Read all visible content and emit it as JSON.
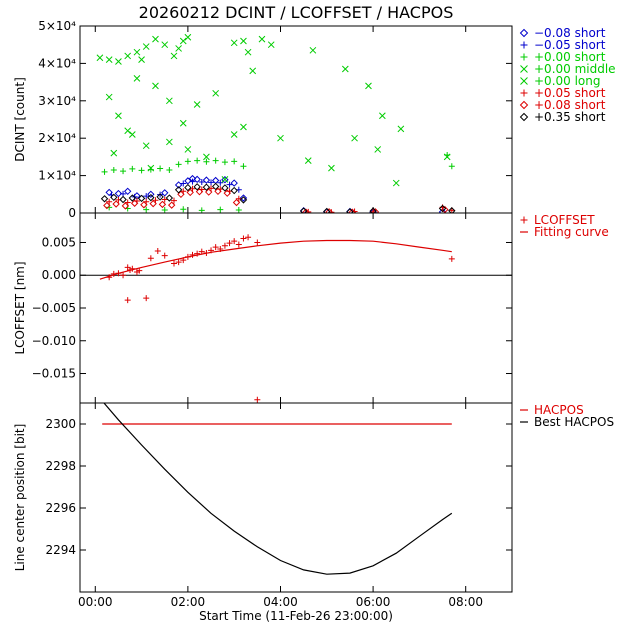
{
  "title": "20260212 DCINT / LCOFFSET / HACPOS",
  "chart_data": [
    {
      "type": "scatter",
      "ylabel": "DCINT [count]",
      "xlim": [
        -0.33,
        9.0
      ],
      "ylim": [
        0,
        50000
      ],
      "yticks": [
        {
          "v": 0,
          "t": "0"
        },
        {
          "v": 10000,
          "t": "1×10⁴"
        },
        {
          "v": 20000,
          "t": "2×10⁴"
        },
        {
          "v": 30000,
          "t": "3×10⁴"
        },
        {
          "v": 40000,
          "t": "4×10⁴"
        },
        {
          "v": 50000,
          "t": "5×10⁴"
        }
      ],
      "legend_position": "right",
      "series": [
        {
          "name": "−0.08 short",
          "marker": "diamond",
          "color": "#0000cc",
          "x": [
            0.3,
            0.5,
            0.7,
            0.9,
            1.2,
            1.5,
            1.8,
            2.0,
            2.1,
            2.2,
            2.4,
            2.6,
            2.8,
            3.0,
            3.2,
            4.5,
            5.0,
            5.5,
            6.0,
            7.5
          ],
          "y": [
            5500,
            5200,
            5800,
            4600,
            5000,
            5400,
            7500,
            8600,
            9200,
            9000,
            8800,
            8700,
            8900,
            8000,
            4000,
            600,
            300,
            400,
            200,
            300
          ]
        },
        {
          "name": "−0.05 short",
          "marker": "plus",
          "color": "#0000cc",
          "x": [
            0.35,
            0.6,
            0.85,
            1.1,
            1.4,
            1.9,
            2.1,
            2.3,
            2.5,
            2.7,
            2.9,
            3.1
          ],
          "y": [
            4800,
            5100,
            4300,
            4500,
            4900,
            7900,
            8400,
            8300,
            8200,
            8100,
            7600,
            6200
          ]
        },
        {
          "name": "+0.00 short",
          "marker": "plus",
          "color": "#00cc00",
          "x": [
            0.2,
            0.4,
            0.6,
            0.8,
            1.0,
            1.2,
            1.4,
            1.6,
            1.8,
            2.0,
            2.2,
            2.4,
            2.6,
            2.8,
            3.0,
            3.2,
            0.3,
            0.7,
            1.1,
            1.5,
            1.9,
            2.3,
            2.7,
            3.1,
            7.6,
            7.7
          ],
          "y": [
            11000,
            11500,
            11200,
            11800,
            11400,
            11600,
            11900,
            11500,
            13000,
            13800,
            14000,
            13700,
            14000,
            13600,
            13800,
            12500,
            1500,
            1200,
            900,
            800,
            1000,
            700,
            900,
            800,
            15500,
            12500
          ]
        },
        {
          "name": "+0.00 middle",
          "marker": "cross",
          "color": "#00cc00",
          "x": [
            0.3,
            0.5,
            0.7,
            0.9,
            1.1,
            1.3,
            1.6,
            1.9,
            2.2,
            2.6,
            3.0,
            3.4,
            0.4,
            0.8,
            1.2,
            1.6,
            2.0,
            2.4,
            2.8,
            3.2,
            4.0,
            4.6,
            5.1,
            5.6,
            6.1,
            6.5,
            7.6
          ],
          "y": [
            31000,
            26000,
            22000,
            36000,
            18000,
            34000,
            30000,
            24000,
            29000,
            32000,
            21000,
            38000,
            16000,
            21000,
            12000,
            19000,
            17000,
            15000,
            9000,
            23000,
            20000,
            14000,
            12000,
            20000,
            17000,
            8000,
            15000
          ]
        },
        {
          "name": "+0.00 long",
          "marker": "cross",
          "color": "#00cc00",
          "x": [
            0.1,
            0.3,
            0.5,
            0.7,
            0.9,
            1.0,
            1.1,
            1.3,
            1.5,
            1.7,
            1.8,
            1.9,
            2.0,
            3.0,
            3.2,
            3.3,
            3.6,
            3.8,
            4.7,
            5.4,
            5.9,
            6.2,
            6.6
          ],
          "y": [
            41500,
            41000,
            40500,
            42000,
            43000,
            41000,
            44500,
            46500,
            45000,
            42000,
            44000,
            46000,
            47000,
            45500,
            46000,
            43000,
            46500,
            45000,
            43500,
            38500,
            34000,
            26000,
            22500
          ]
        },
        {
          "name": "+0.05 short",
          "marker": "plus",
          "color": "#dd0000",
          "x": [
            0.3,
            0.5,
            0.7,
            0.9,
            1.1,
            1.3,
            1.5,
            1.7,
            1.9,
            2.1,
            2.3,
            2.5,
            2.7,
            2.9,
            3.1,
            4.6,
            5.1,
            5.6,
            6.0,
            7.5,
            7.7
          ],
          "y": [
            3000,
            3500,
            2800,
            3200,
            3000,
            3400,
            3600,
            3300,
            5800,
            6500,
            6300,
            6600,
            6400,
            5800,
            3800,
            300,
            200,
            400,
            300,
            1500,
            700
          ]
        },
        {
          "name": "+0.08 short",
          "marker": "diamond",
          "color": "#dd0000",
          "x": [
            0.25,
            0.45,
            0.65,
            0.85,
            1.05,
            1.25,
            1.45,
            1.65,
            1.85,
            2.05,
            2.25,
            2.45,
            2.65,
            2.85,
            3.05,
            4.55,
            5.05,
            5.55,
            6.05,
            7.55
          ],
          "y": [
            2000,
            2400,
            1900,
            2600,
            2200,
            2500,
            2300,
            2100,
            5000,
            5500,
            5700,
            5600,
            5800,
            5300,
            2800,
            200,
            300,
            200,
            300,
            900
          ]
        },
        {
          "name": "+0.35 short",
          "marker": "diamond",
          "color": "#000000",
          "x": [
            0.2,
            0.4,
            0.6,
            0.8,
            1.0,
            1.2,
            1.4,
            1.6,
            1.8,
            2.0,
            2.2,
            2.4,
            2.6,
            2.8,
            3.0,
            3.2,
            4.5,
            5.0,
            5.5,
            6.0,
            7.5,
            7.7
          ],
          "y": [
            3800,
            4200,
            3600,
            4000,
            3900,
            4100,
            4300,
            4000,
            6200,
            6800,
            7000,
            6900,
            7100,
            6700,
            6000,
            3500,
            500,
            400,
            300,
            500,
            1200,
            600
          ]
        }
      ]
    },
    {
      "type": "scatter",
      "ylabel": "LCOFFSET [nm]",
      "xlim": [
        -0.33,
        9.0
      ],
      "ylim": [
        -0.0195,
        0.0095
      ],
      "yticks": [
        {
          "v": 0.005,
          "t": "0.005"
        },
        {
          "v": 0.0,
          "t": "0.000"
        },
        {
          "v": -0.005,
          "t": "−0.005"
        },
        {
          "v": -0.01,
          "t": "−0.010"
        },
        {
          "v": -0.015,
          "t": "−0.015"
        }
      ],
      "zero_line": 0.0,
      "legend_position": "right",
      "series": [
        {
          "name": "LCOFFSET",
          "marker": "plus",
          "color": "#dd0000",
          "x": [
            0.3,
            0.4,
            0.5,
            0.6,
            0.7,
            0.75,
            0.8,
            0.9,
            0.95,
            1.2,
            1.35,
            1.5,
            1.7,
            1.8,
            1.9,
            2.0,
            2.1,
            2.2,
            2.3,
            2.4,
            2.5,
            2.6,
            2.7,
            2.8,
            2.9,
            3.0,
            3.1,
            3.2,
            3.3,
            3.5,
            7.7,
            0.7,
            1.1,
            3.5
          ],
          "y": [
            -0.0003,
            0.0002,
            0.0003,
            0.0,
            0.0012,
            0.0008,
            0.001,
            0.0005,
            0.0007,
            0.0026,
            0.0037,
            0.003,
            0.0018,
            0.002,
            0.0023,
            0.0028,
            0.0031,
            0.0033,
            0.0036,
            0.0034,
            0.0038,
            0.0043,
            0.004,
            0.0045,
            0.0049,
            0.0052,
            0.0047,
            0.0056,
            0.0058,
            0.005,
            0.0025,
            -0.0038,
            -0.0035,
            -0.019
          ]
        },
        {
          "name": "Fitting curve",
          "style": "line",
          "color": "#dd0000",
          "x": [
            0.1,
            0.5,
            1.0,
            1.5,
            2.0,
            2.5,
            3.0,
            3.5,
            4.0,
            4.5,
            5.0,
            5.5,
            6.0,
            6.5,
            7.0,
            7.5,
            7.7
          ],
          "y": [
            -0.0006,
            0.0003,
            0.0012,
            0.002,
            0.0028,
            0.0035,
            0.004,
            0.0045,
            0.0049,
            0.0052,
            0.0053,
            0.0053,
            0.0052,
            0.0048,
            0.0043,
            0.0038,
            0.0036
          ]
        }
      ]
    },
    {
      "type": "line",
      "ylabel": "Line center position [bit]",
      "xlabel": "Start Time (11-Feb-26 23:00:00)",
      "xlim": [
        -0.33,
        9.0
      ],
      "ylim": [
        2292.0,
        2301.0
      ],
      "yticks": [
        {
          "v": 2294,
          "t": "2294"
        },
        {
          "v": 2296,
          "t": "2296"
        },
        {
          "v": 2298,
          "t": "2298"
        },
        {
          "v": 2300,
          "t": "2300"
        }
      ],
      "xticks": [
        {
          "v": 0,
          "t": "00:00"
        },
        {
          "v": 2,
          "t": "02:00"
        },
        {
          "v": 4,
          "t": "04:00"
        },
        {
          "v": 6,
          "t": "06:00"
        },
        {
          "v": 8,
          "t": "08:00"
        }
      ],
      "legend_position": "right",
      "series": [
        {
          "name": "HACPOS",
          "color": "#dd0000",
          "x": [
            0.15,
            7.7
          ],
          "y": [
            2300.0,
            2300.0
          ]
        },
        {
          "name": "Best HACPOS",
          "color": "#000000",
          "x": [
            0.15,
            0.5,
            1.0,
            1.5,
            2.0,
            2.5,
            3.0,
            3.5,
            4.0,
            4.5,
            5.0,
            5.5,
            6.0,
            6.5,
            7.0,
            7.5,
            7.7
          ],
          "y": [
            2301.1,
            2300.2,
            2299.0,
            2297.85,
            2296.75,
            2295.75,
            2294.9,
            2294.15,
            2293.5,
            2293.05,
            2292.85,
            2292.9,
            2293.25,
            2293.85,
            2294.65,
            2295.45,
            2295.75
          ]
        }
      ]
    }
  ]
}
